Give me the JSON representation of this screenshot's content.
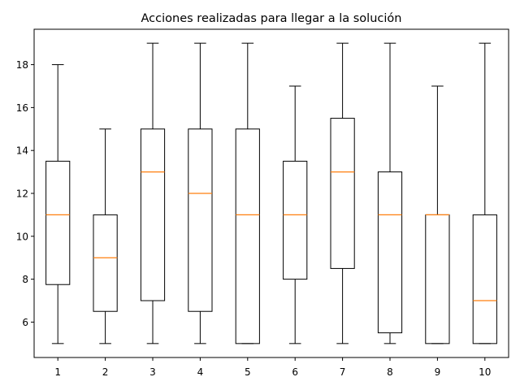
{
  "chart_data": {
    "type": "boxplot",
    "title": "Acciones realizadas para llegar a la solución",
    "xlabel": "",
    "ylabel": "",
    "ylim": [
      4.35,
      19.65
    ],
    "yticks": [
      6,
      8,
      10,
      12,
      14,
      16,
      18
    ],
    "categories": [
      "1",
      "2",
      "3",
      "4",
      "5",
      "6",
      "7",
      "8",
      "9",
      "10"
    ],
    "boxes": [
      {
        "category": "1",
        "whisker_low": 5,
        "q1": 7.75,
        "median": 11,
        "q3": 13.5,
        "whisker_high": 18
      },
      {
        "category": "2",
        "whisker_low": 5,
        "q1": 6.5,
        "median": 9,
        "q3": 11,
        "whisker_high": 15
      },
      {
        "category": "3",
        "whisker_low": 5,
        "q1": 7,
        "median": 13,
        "q3": 15,
        "whisker_high": 19
      },
      {
        "category": "4",
        "whisker_low": 5,
        "q1": 6.5,
        "median": 12,
        "q3": 15,
        "whisker_high": 19
      },
      {
        "category": "5",
        "whisker_low": 5,
        "q1": 5,
        "median": 11,
        "q3": 15,
        "whisker_high": 19
      },
      {
        "category": "6",
        "whisker_low": 5,
        "q1": 8,
        "median": 11,
        "q3": 13.5,
        "whisker_high": 17
      },
      {
        "category": "7",
        "whisker_low": 5,
        "q1": 8.5,
        "median": 13,
        "q3": 15.5,
        "whisker_high": 19
      },
      {
        "category": "8",
        "whisker_low": 5,
        "q1": 5.5,
        "median": 11,
        "q3": 13,
        "whisker_high": 19
      },
      {
        "category": "9",
        "whisker_low": 5,
        "q1": 5,
        "median": 11,
        "q3": 11,
        "whisker_high": 17
      },
      {
        "category": "10",
        "whisker_low": 5,
        "q1": 5,
        "median": 7,
        "q3": 11,
        "whisker_high": 19
      }
    ],
    "colors": {
      "box": "#000000",
      "median": "#ff7f0e"
    },
    "grid": false,
    "legend": "none"
  }
}
